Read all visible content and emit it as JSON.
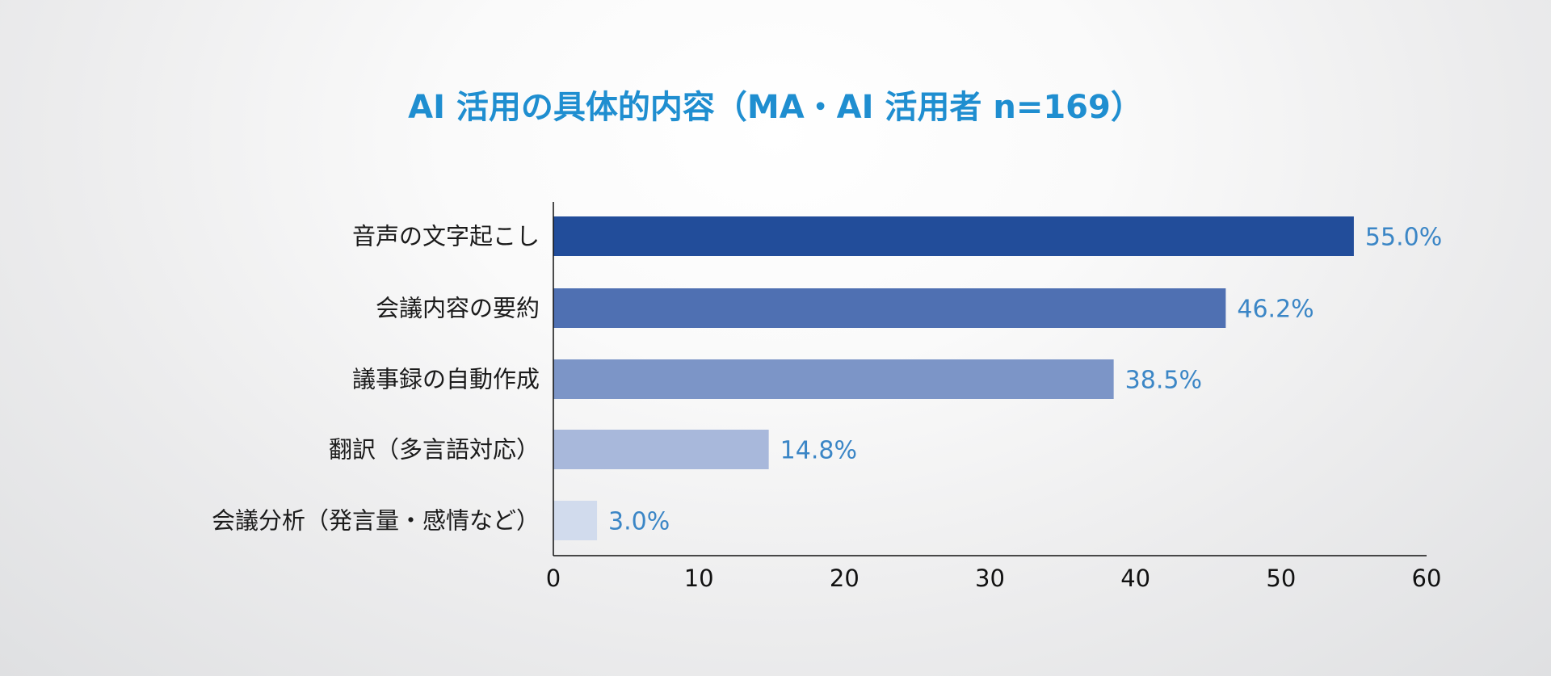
{
  "chart_data": {
    "type": "bar",
    "orientation": "horizontal",
    "title": "AI 活用の具体的内容（MA・AI 活用者 n=169）",
    "categories": [
      "音声の文字起こし",
      "会議内容の要約",
      "議事録の自動作成",
      "翻訳（多言語対応）",
      "会議分析（発言量・感情など）"
    ],
    "values": [
      55.0,
      46.2,
      38.5,
      14.8,
      3.0
    ],
    "value_labels": [
      "55.0%",
      "46.2%",
      "38.5%",
      "14.8%",
      "3.0%"
    ],
    "bar_colors": [
      "#224d9a",
      "#4f70b2",
      "#7c95c7",
      "#a8b8db",
      "#d1dbed"
    ],
    "xlim": [
      0,
      60
    ],
    "xticks": [
      0,
      10,
      20,
      30,
      40,
      50,
      60
    ],
    "xtick_labels": [
      "0",
      "10",
      "20",
      "30",
      "40",
      "50",
      "60"
    ],
    "grid": false,
    "legend": "none",
    "colors": {
      "title": "#1f8ed0",
      "value_label": "#3b86c6",
      "axis": "#111111"
    }
  }
}
